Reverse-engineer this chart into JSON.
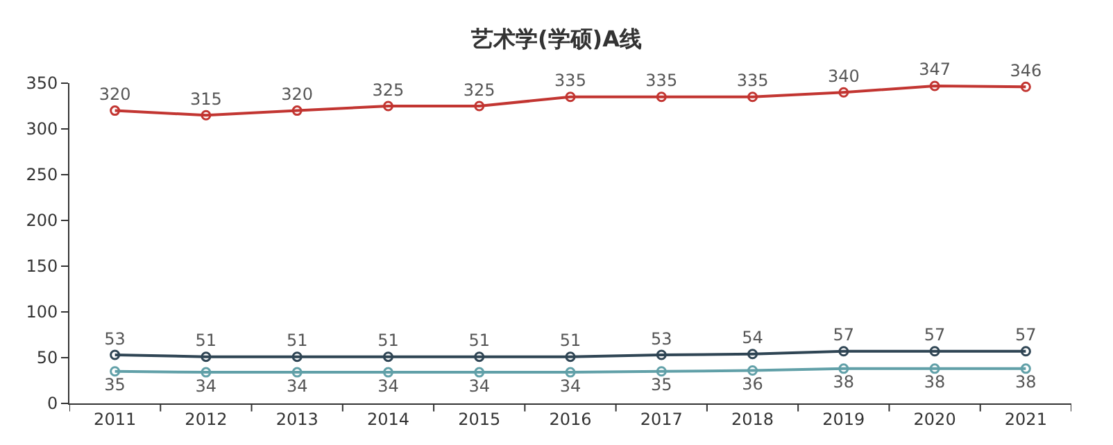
{
  "chart_data": {
    "type": "line",
    "title": "艺术学(学硕)A线",
    "categories": [
      "2011",
      "2012",
      "2013",
      "2014",
      "2015",
      "2016",
      "2017",
      "2018",
      "2019",
      "2020",
      "2021"
    ],
    "series": [
      {
        "color": "#c23531",
        "values": [
          320,
          315,
          320,
          325,
          325,
          335,
          335,
          335,
          340,
          347,
          346
        ]
      },
      {
        "color": "#2f4554",
        "values": [
          53,
          51,
          51,
          51,
          51,
          51,
          53,
          54,
          57,
          57,
          57
        ]
      },
      {
        "color": "#61a0a8",
        "values": [
          35,
          34,
          34,
          34,
          34,
          34,
          35,
          36,
          38,
          38,
          38
        ]
      }
    ],
    "ylim": [
      0,
      350
    ],
    "yticks": [
      0,
      50,
      100,
      150,
      200,
      250,
      300,
      350
    ],
    "data_labels": true,
    "marker": "circle",
    "line_style": "solid"
  }
}
